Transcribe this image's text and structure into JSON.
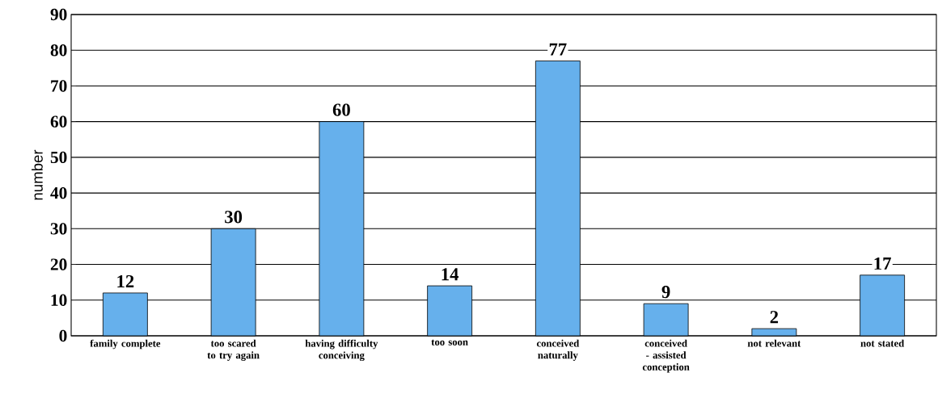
{
  "chart_data": {
    "type": "bar",
    "ylabel": "number",
    "categories": [
      "family complete",
      "too scared to try again",
      "having difficulty conceiving",
      "too soon",
      "conceived naturally",
      "conceived - assisted conception",
      "not relevant",
      "not stated"
    ],
    "values": [
      12,
      30,
      60,
      14,
      77,
      9,
      2,
      17
    ],
    "color": "#66b0ec",
    "ylim": [
      0,
      90
    ],
    "yticks": [
      0,
      10,
      20,
      30,
      40,
      50,
      60,
      70,
      80,
      90
    ],
    "grid": "y",
    "data_labels": true
  }
}
